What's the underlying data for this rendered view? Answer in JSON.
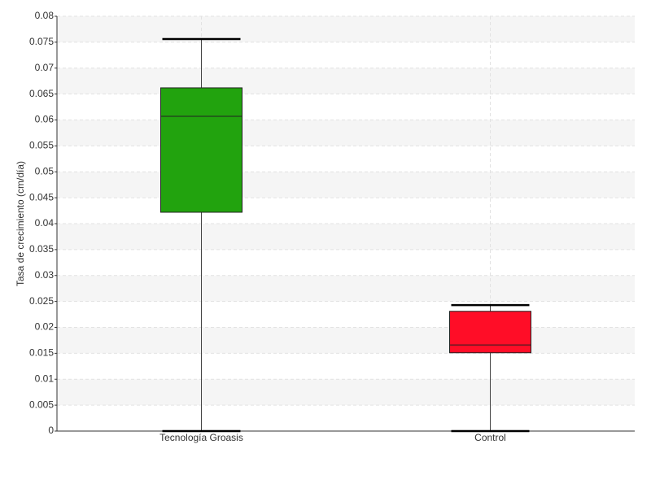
{
  "chart_data": {
    "type": "box",
    "y_label": "Tasa de crecimiento (cm/día)",
    "categories": [
      "Tecnología Groasis",
      "Control"
    ],
    "boxes": [
      {
        "min": 0,
        "q1": 0.0422,
        "median": 0.0607,
        "q3": 0.0662,
        "max": 0.0756,
        "color": "#22a30e"
      },
      {
        "min": 0,
        "q1": 0.0151,
        "median": 0.0166,
        "q3": 0.0231,
        "max": 0.0243,
        "color": "#ff0d27"
      }
    ],
    "ylim": [
      0,
      0.08
    ],
    "yticks": [
      0,
      0.005,
      0.01,
      0.015,
      0.02,
      0.025,
      0.03,
      0.035,
      0.04,
      0.045,
      0.05,
      0.055,
      0.06,
      0.065,
      0.07,
      0.075,
      0.08
    ],
    "grid": true
  }
}
